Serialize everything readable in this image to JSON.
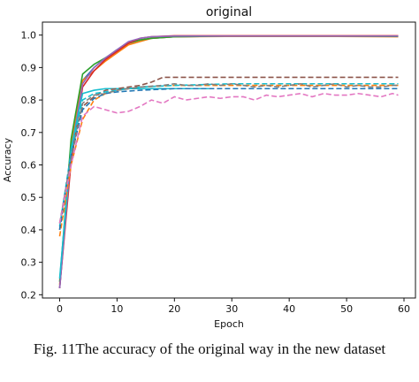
{
  "chart_data": {
    "type": "line",
    "title": "original",
    "xlabel": "Epoch",
    "ylabel": "Accuracy",
    "xlim": [
      -3,
      62
    ],
    "ylim": [
      0.19,
      1.04
    ],
    "xticks": [
      "0",
      "10",
      "20",
      "30",
      "40",
      "50",
      "60"
    ],
    "yticks": [
      "0.2",
      "0.3",
      "0.4",
      "0.5",
      "0.6",
      "0.7",
      "0.8",
      "0.9",
      "1.0"
    ],
    "grid": false,
    "x_max_epoch": 59,
    "series": [
      {
        "style": "solid",
        "color": "#1f77b4",
        "values": [
          [
            0,
            0.22
          ],
          [
            2,
            0.63
          ],
          [
            4,
            0.86
          ],
          [
            6,
            0.9
          ],
          [
            8,
            0.93
          ],
          [
            10,
            0.95
          ],
          [
            12,
            0.975
          ],
          [
            14,
            0.985
          ],
          [
            16,
            0.99
          ],
          [
            20,
            0.995
          ],
          [
            30,
            0.997
          ],
          [
            45,
            0.997
          ],
          [
            59,
            0.997
          ]
        ]
      },
      {
        "style": "solid",
        "color": "#ff7f0e",
        "values": [
          [
            0,
            0.23
          ],
          [
            2,
            0.66
          ],
          [
            4,
            0.86
          ],
          [
            6,
            0.89
          ],
          [
            8,
            0.92
          ],
          [
            10,
            0.945
          ],
          [
            12,
            0.97
          ],
          [
            14,
            0.98
          ],
          [
            16,
            0.99
          ],
          [
            20,
            0.995
          ],
          [
            30,
            0.996
          ],
          [
            45,
            0.996
          ],
          [
            59,
            0.995
          ]
        ]
      },
      {
        "style": "solid",
        "color": "#2ca02c",
        "values": [
          [
            0,
            0.24
          ],
          [
            2,
            0.68
          ],
          [
            4,
            0.88
          ],
          [
            6,
            0.91
          ],
          [
            8,
            0.93
          ],
          [
            10,
            0.955
          ],
          [
            12,
            0.975
          ],
          [
            14,
            0.985
          ],
          [
            16,
            0.99
          ],
          [
            20,
            0.995
          ],
          [
            30,
            0.997
          ],
          [
            45,
            0.997
          ],
          [
            59,
            0.996
          ]
        ]
      },
      {
        "style": "solid",
        "color": "#d62728",
        "values": [
          [
            0,
            0.22
          ],
          [
            2,
            0.61
          ],
          [
            4,
            0.84
          ],
          [
            6,
            0.89
          ],
          [
            8,
            0.925
          ],
          [
            10,
            0.95
          ],
          [
            12,
            0.975
          ],
          [
            14,
            0.99
          ],
          [
            16,
            0.995
          ],
          [
            20,
            0.998
          ],
          [
            30,
            0.998
          ],
          [
            45,
            0.998
          ],
          [
            59,
            0.998
          ]
        ]
      },
      {
        "style": "solid",
        "color": "#9467bd",
        "values": [
          [
            0,
            0.22
          ],
          [
            2,
            0.64
          ],
          [
            4,
            0.85
          ],
          [
            6,
            0.9
          ],
          [
            8,
            0.93
          ],
          [
            10,
            0.955
          ],
          [
            12,
            0.98
          ],
          [
            14,
            0.99
          ],
          [
            16,
            0.995
          ],
          [
            20,
            0.997
          ],
          [
            30,
            0.997
          ],
          [
            45,
            0.997
          ],
          [
            59,
            0.997
          ]
        ]
      },
      {
        "style": "solid",
        "color": "#17becf",
        "values": [
          [
            0,
            0.25
          ],
          [
            2,
            0.65
          ],
          [
            4,
            0.82
          ],
          [
            6,
            0.83
          ],
          [
            8,
            0.835
          ],
          [
            10,
            0.835
          ],
          [
            14,
            0.835
          ],
          [
            20,
            0.835
          ],
          [
            26,
            0.835
          ]
        ]
      },
      {
        "style": "dashed",
        "color": "#8c564b",
        "values": [
          [
            0,
            0.4
          ],
          [
            2,
            0.62
          ],
          [
            4,
            0.78
          ],
          [
            6,
            0.81
          ],
          [
            8,
            0.83
          ],
          [
            10,
            0.835
          ],
          [
            14,
            0.845
          ],
          [
            16,
            0.855
          ],
          [
            18,
            0.87
          ],
          [
            25,
            0.87
          ],
          [
            40,
            0.87
          ],
          [
            59,
            0.87
          ]
        ]
      },
      {
        "style": "dashed",
        "color": "#ff7f0e",
        "values": [
          [
            0,
            0.38
          ],
          [
            2,
            0.6
          ],
          [
            4,
            0.74
          ],
          [
            6,
            0.8
          ],
          [
            8,
            0.82
          ],
          [
            10,
            0.83
          ],
          [
            14,
            0.84
          ],
          [
            20,
            0.845
          ],
          [
            30,
            0.845
          ],
          [
            45,
            0.845
          ],
          [
            59,
            0.845
          ]
        ]
      },
      {
        "style": "dashed",
        "color": "#17becf",
        "values": [
          [
            0,
            0.41
          ],
          [
            2,
            0.64
          ],
          [
            4,
            0.8
          ],
          [
            6,
            0.82
          ],
          [
            8,
            0.825
          ],
          [
            10,
            0.83
          ],
          [
            14,
            0.84
          ],
          [
            20,
            0.845
          ],
          [
            30,
            0.85
          ],
          [
            45,
            0.85
          ],
          [
            59,
            0.85
          ]
        ]
      },
      {
        "style": "dashed",
        "color": "#1f77b4",
        "values": [
          [
            0,
            0.4
          ],
          [
            2,
            0.63
          ],
          [
            4,
            0.77
          ],
          [
            6,
            0.805
          ],
          [
            8,
            0.82
          ],
          [
            10,
            0.825
          ],
          [
            14,
            0.83
          ],
          [
            20,
            0.835
          ],
          [
            30,
            0.835
          ],
          [
            45,
            0.835
          ],
          [
            59,
            0.835
          ]
        ]
      },
      {
        "style": "dashed",
        "color": "#7f7f7f",
        "values": [
          [
            0,
            0.42
          ],
          [
            2,
            0.62
          ],
          [
            4,
            0.79
          ],
          [
            6,
            0.815
          ],
          [
            8,
            0.82
          ],
          [
            10,
            0.83
          ],
          [
            14,
            0.84
          ],
          [
            18,
            0.845
          ],
          [
            20,
            0.85
          ],
          [
            22,
            0.845
          ],
          [
            24,
            0.845
          ],
          [
            26,
            0.85
          ],
          [
            28,
            0.845
          ],
          [
            30,
            0.85
          ],
          [
            32,
            0.845
          ],
          [
            34,
            0.84
          ],
          [
            36,
            0.845
          ],
          [
            38,
            0.84
          ],
          [
            40,
            0.845
          ],
          [
            42,
            0.85
          ],
          [
            44,
            0.84
          ],
          [
            46,
            0.845
          ],
          [
            48,
            0.85
          ],
          [
            50,
            0.84
          ],
          [
            52,
            0.845
          ],
          [
            54,
            0.84
          ],
          [
            56,
            0.84
          ],
          [
            58,
            0.845
          ],
          [
            59,
            0.845
          ]
        ]
      },
      {
        "style": "dashed",
        "color": "#e377c2",
        "values": [
          [
            0,
            0.42
          ],
          [
            2,
            0.6
          ],
          [
            4,
            0.75
          ],
          [
            6,
            0.78
          ],
          [
            8,
            0.77
          ],
          [
            10,
            0.76
          ],
          [
            12,
            0.765
          ],
          [
            14,
            0.78
          ],
          [
            16,
            0.8
          ],
          [
            18,
            0.79
          ],
          [
            20,
            0.81
          ],
          [
            22,
            0.8
          ],
          [
            24,
            0.805
          ],
          [
            26,
            0.81
          ],
          [
            28,
            0.805
          ],
          [
            30,
            0.81
          ],
          [
            32,
            0.81
          ],
          [
            34,
            0.8
          ],
          [
            36,
            0.815
          ],
          [
            38,
            0.81
          ],
          [
            40,
            0.815
          ],
          [
            42,
            0.82
          ],
          [
            44,
            0.81
          ],
          [
            46,
            0.82
          ],
          [
            48,
            0.815
          ],
          [
            50,
            0.815
          ],
          [
            52,
            0.82
          ],
          [
            54,
            0.815
          ],
          [
            56,
            0.81
          ],
          [
            58,
            0.82
          ],
          [
            59,
            0.815
          ]
        ]
      }
    ]
  },
  "caption": "Fig. 11The accuracy of the original way in the new dataset"
}
